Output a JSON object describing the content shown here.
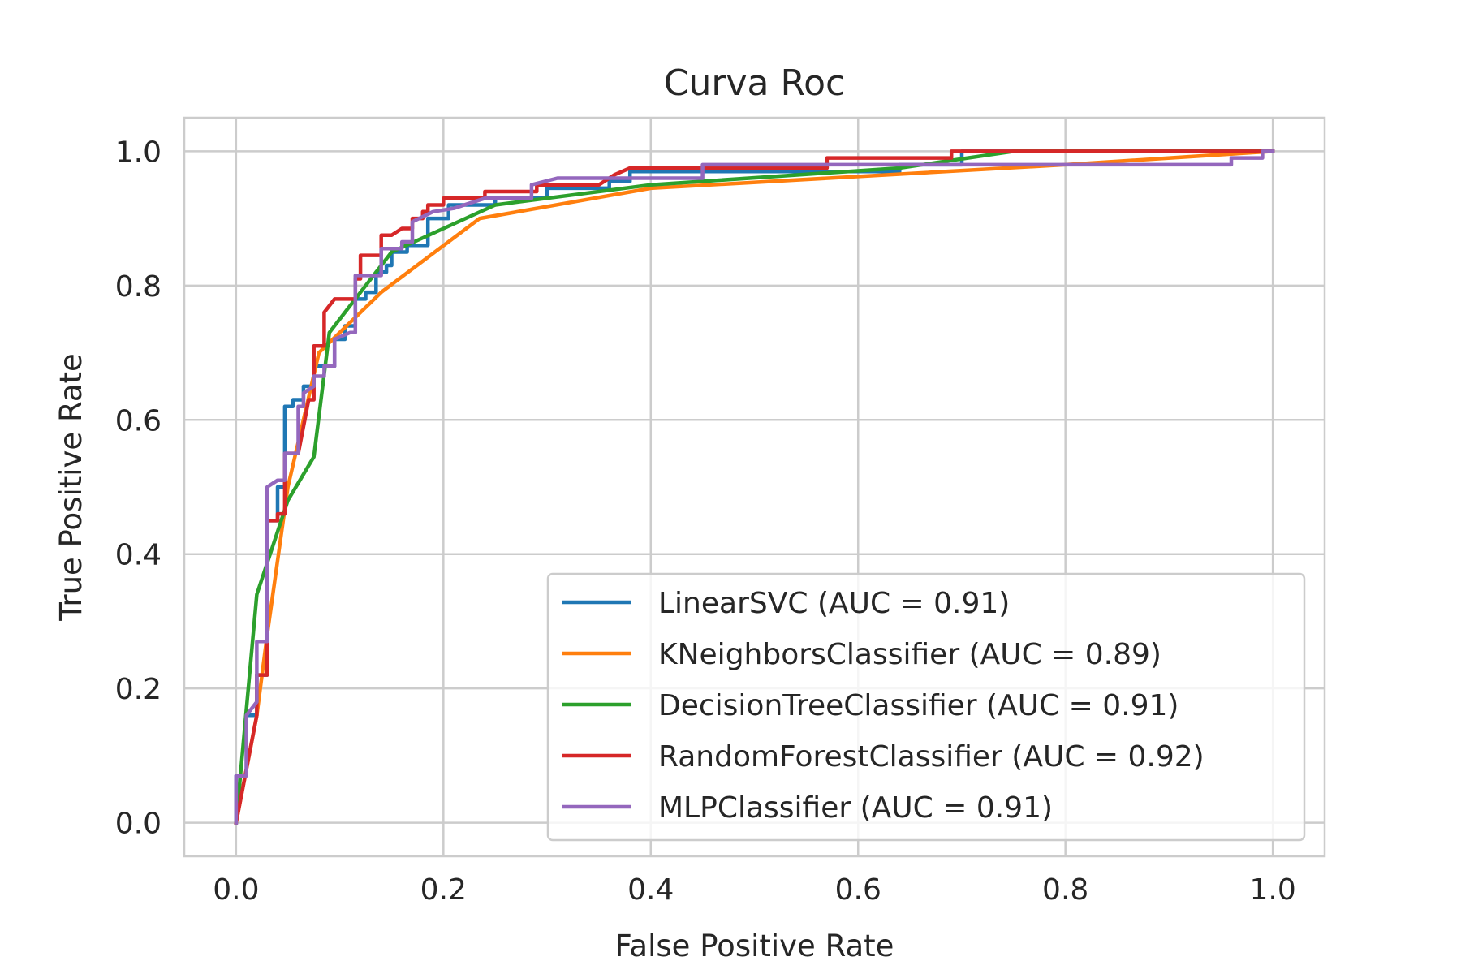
{
  "chart_data": {
    "type": "line",
    "title": "Curva Roc",
    "xlabel": "False Positive Rate",
    "ylabel": "True Positive Rate",
    "xlim": [
      -0.05,
      1.05
    ],
    "ylim": [
      -0.05,
      1.05
    ],
    "xticks": [
      0.0,
      0.2,
      0.4,
      0.6,
      0.8,
      1.0
    ],
    "xtick_labels": [
      "0.0",
      "0.2",
      "0.4",
      "0.6",
      "0.8",
      "1.0"
    ],
    "yticks": [
      0.0,
      0.2,
      0.4,
      0.6,
      0.8,
      1.0
    ],
    "ytick_labels": [
      "0.0",
      "0.2",
      "0.4",
      "0.6",
      "0.8",
      "1.0"
    ],
    "grid": true,
    "legend_position": "lower-right",
    "series": [
      {
        "name": "LinearSVC (AUC = 0.91)",
        "color": "#1f77b4",
        "points": [
          [
            0,
            0
          ],
          [
            0,
            0.07
          ],
          [
            0.01,
            0.07
          ],
          [
            0.01,
            0.16
          ],
          [
            0.02,
            0.16
          ],
          [
            0.02,
            0.22
          ],
          [
            0.03,
            0.22
          ],
          [
            0.03,
            0.45
          ],
          [
            0.04,
            0.45
          ],
          [
            0.04,
            0.5
          ],
          [
            0.047,
            0.5
          ],
          [
            0.047,
            0.62
          ],
          [
            0.055,
            0.62
          ],
          [
            0.055,
            0.63
          ],
          [
            0.065,
            0.63
          ],
          [
            0.065,
            0.65
          ],
          [
            0.075,
            0.65
          ],
          [
            0.075,
            0.68
          ],
          [
            0.095,
            0.68
          ],
          [
            0.095,
            0.72
          ],
          [
            0.105,
            0.72
          ],
          [
            0.105,
            0.74
          ],
          [
            0.115,
            0.74
          ],
          [
            0.115,
            0.78
          ],
          [
            0.125,
            0.78
          ],
          [
            0.125,
            0.79
          ],
          [
            0.135,
            0.79
          ],
          [
            0.135,
            0.82
          ],
          [
            0.145,
            0.82
          ],
          [
            0.145,
            0.83
          ],
          [
            0.15,
            0.83
          ],
          [
            0.15,
            0.85
          ],
          [
            0.165,
            0.85
          ],
          [
            0.165,
            0.86
          ],
          [
            0.185,
            0.86
          ],
          [
            0.185,
            0.9
          ],
          [
            0.205,
            0.9
          ],
          [
            0.205,
            0.92
          ],
          [
            0.25,
            0.92
          ],
          [
            0.25,
            0.93
          ],
          [
            0.3,
            0.93
          ],
          [
            0.3,
            0.945
          ],
          [
            0.36,
            0.945
          ],
          [
            0.36,
            0.955
          ],
          [
            0.38,
            0.955
          ],
          [
            0.38,
            0.97
          ],
          [
            0.64,
            0.97
          ],
          [
            0.64,
            0.98
          ],
          [
            0.7,
            0.98
          ],
          [
            0.7,
            1.0
          ],
          [
            1.0,
            1.0
          ]
        ]
      },
      {
        "name": "KNeighborsClassifier (AUC = 0.89)",
        "color": "#ff7f0e",
        "points": [
          [
            0,
            0
          ],
          [
            0.02,
            0.16
          ],
          [
            0.03,
            0.28
          ],
          [
            0.05,
            0.5
          ],
          [
            0.08,
            0.7
          ],
          [
            0.14,
            0.79
          ],
          [
            0.235,
            0.9
          ],
          [
            0.4,
            0.945
          ],
          [
            0.8,
            0.98
          ],
          [
            1.0,
            1.0
          ]
        ]
      },
      {
        "name": "DecisionTreeClassifier (AUC = 0.91)",
        "color": "#2ca02c",
        "points": [
          [
            0,
            0
          ],
          [
            0.02,
            0.34
          ],
          [
            0.05,
            0.48
          ],
          [
            0.075,
            0.545
          ],
          [
            0.09,
            0.73
          ],
          [
            0.15,
            0.85
          ],
          [
            0.25,
            0.92
          ],
          [
            0.4,
            0.95
          ],
          [
            0.64,
            0.975
          ],
          [
            0.75,
            1.0
          ],
          [
            1.0,
            1.0
          ]
        ]
      },
      {
        "name": "RandomForestClassifier (AUC = 0.92)",
        "color": "#d62728",
        "points": [
          [
            0,
            0
          ],
          [
            0.02,
            0.16
          ],
          [
            0.02,
            0.22
          ],
          [
            0.03,
            0.22
          ],
          [
            0.03,
            0.45
          ],
          [
            0.04,
            0.45
          ],
          [
            0.04,
            0.46
          ],
          [
            0.047,
            0.46
          ],
          [
            0.047,
            0.55
          ],
          [
            0.06,
            0.55
          ],
          [
            0.07,
            0.63
          ],
          [
            0.075,
            0.63
          ],
          [
            0.075,
            0.71
          ],
          [
            0.085,
            0.71
          ],
          [
            0.085,
            0.76
          ],
          [
            0.095,
            0.78
          ],
          [
            0.115,
            0.78
          ],
          [
            0.115,
            0.81
          ],
          [
            0.12,
            0.81
          ],
          [
            0.12,
            0.845
          ],
          [
            0.14,
            0.845
          ],
          [
            0.14,
            0.875
          ],
          [
            0.15,
            0.875
          ],
          [
            0.16,
            0.885
          ],
          [
            0.17,
            0.885
          ],
          [
            0.17,
            0.9
          ],
          [
            0.18,
            0.9
          ],
          [
            0.18,
            0.91
          ],
          [
            0.185,
            0.91
          ],
          [
            0.185,
            0.92
          ],
          [
            0.2,
            0.92
          ],
          [
            0.2,
            0.93
          ],
          [
            0.24,
            0.93
          ],
          [
            0.24,
            0.94
          ],
          [
            0.29,
            0.94
          ],
          [
            0.29,
            0.95
          ],
          [
            0.35,
            0.95
          ],
          [
            0.365,
            0.965
          ],
          [
            0.38,
            0.975
          ],
          [
            0.57,
            0.975
          ],
          [
            0.57,
            0.99
          ],
          [
            0.69,
            0.99
          ],
          [
            0.69,
            1.0
          ],
          [
            1.0,
            1.0
          ]
        ]
      },
      {
        "name": "MLPClassifier (AUC = 0.91)",
        "color": "#9467bd",
        "points": [
          [
            0,
            0
          ],
          [
            0,
            0.07
          ],
          [
            0.01,
            0.07
          ],
          [
            0.01,
            0.16
          ],
          [
            0.02,
            0.18
          ],
          [
            0.02,
            0.27
          ],
          [
            0.03,
            0.27
          ],
          [
            0.03,
            0.5
          ],
          [
            0.04,
            0.51
          ],
          [
            0.047,
            0.51
          ],
          [
            0.047,
            0.55
          ],
          [
            0.06,
            0.55
          ],
          [
            0.06,
            0.62
          ],
          [
            0.065,
            0.62
          ],
          [
            0.065,
            0.64
          ],
          [
            0.075,
            0.65
          ],
          [
            0.075,
            0.665
          ],
          [
            0.085,
            0.665
          ],
          [
            0.085,
            0.68
          ],
          [
            0.095,
            0.68
          ],
          [
            0.095,
            0.72
          ],
          [
            0.11,
            0.73
          ],
          [
            0.11,
            0.73
          ],
          [
            0.115,
            0.73
          ],
          [
            0.115,
            0.815
          ],
          [
            0.14,
            0.815
          ],
          [
            0.14,
            0.855
          ],
          [
            0.16,
            0.855
          ],
          [
            0.16,
            0.865
          ],
          [
            0.17,
            0.865
          ],
          [
            0.17,
            0.895
          ],
          [
            0.19,
            0.91
          ],
          [
            0.21,
            0.915
          ],
          [
            0.24,
            0.93
          ],
          [
            0.285,
            0.93
          ],
          [
            0.285,
            0.95
          ],
          [
            0.31,
            0.96
          ],
          [
            0.45,
            0.96
          ],
          [
            0.45,
            0.98
          ],
          [
            0.96,
            0.98
          ],
          [
            0.96,
            0.99
          ],
          [
            0.99,
            0.99
          ],
          [
            0.99,
            1.0
          ],
          [
            1.0,
            1.0
          ]
        ]
      }
    ]
  }
}
